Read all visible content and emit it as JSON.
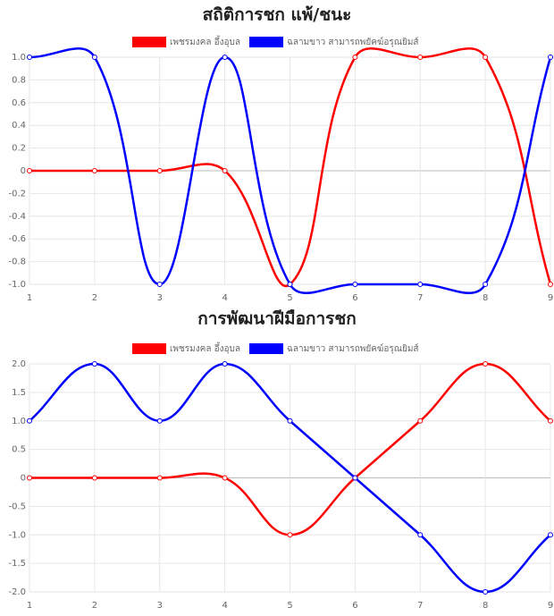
{
  "chart_data": [
    {
      "type": "line",
      "title": "สถิติการชก แพ้/ชนะ",
      "categories": [
        "1",
        "2",
        "3",
        "4",
        "5",
        "6",
        "7",
        "8",
        "9"
      ],
      "series": [
        {
          "name": "เพชรมงคล อึ้งอุบล",
          "color": "#ff0000",
          "values": [
            0,
            0,
            0,
            0,
            -1,
            1,
            1,
            1,
            -1
          ]
        },
        {
          "name": "ฉลามขาว สามารถพยัคฆ์อรุณยิมส์",
          "color": "#0000ff",
          "values": [
            1,
            1,
            -1,
            1,
            -1,
            -1,
            -1,
            -1,
            1
          ]
        }
      ],
      "ylim": [
        -1,
        1
      ],
      "yticks": [
        {
          "value": 1,
          "label": "1.0"
        },
        0.8,
        0.6,
        0.4,
        0.2,
        0,
        -0.2,
        -0.4,
        -0.6,
        -0.8,
        {
          "value": -1,
          "label": "-1.0"
        }
      ],
      "grid": true
    },
    {
      "type": "line",
      "title": "การพัฒนาฝีมือการชก",
      "categories": [
        "1",
        "2",
        "3",
        "4",
        "5",
        "6",
        "7",
        "8",
        "9"
      ],
      "series": [
        {
          "name": "เพชรมงคล อึ้งอุบล",
          "color": "#ff0000",
          "values": [
            0,
            0,
            0,
            0,
            -1,
            0,
            1,
            2,
            1
          ]
        },
        {
          "name": "ฉลามขาว สามารถพยัคฆ์อรุณยิมส์",
          "color": "#0000ff",
          "values": [
            1,
            2,
            1,
            2,
            1,
            0,
            -1,
            -2,
            -1
          ]
        }
      ],
      "ylim": [
        -2,
        2
      ],
      "yticks": [
        {
          "value": 2,
          "label": "2.0"
        },
        1.5,
        {
          "value": 1,
          "label": "1.0"
        },
        0.5,
        0,
        -0.5,
        {
          "value": -1,
          "label": "-1.0"
        },
        -1.5,
        {
          "value": -2,
          "label": "-2.0"
        }
      ],
      "grid": true
    }
  ]
}
